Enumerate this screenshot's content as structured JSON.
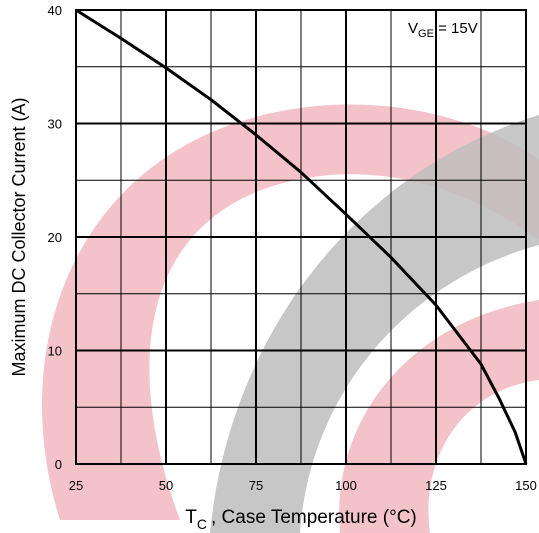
{
  "chart_data": {
    "type": "line",
    "x_label": {
      "main": "T",
      "sub": "C",
      "rest": ", Case Temperature (°C)"
    },
    "y_label": "Maximum DC Collector Current (A)",
    "annotation": {
      "main": "V",
      "sub": "GE",
      "rest": " = 15V"
    },
    "x": [
      25,
      37.5,
      50,
      62.5,
      75,
      87.5,
      100,
      112.5,
      125,
      137.5,
      142.5,
      147,
      150
    ],
    "series": [
      {
        "name": "Maximum DC Collector Current",
        "color": "#000000",
        "values": [
          40,
          37.5,
          34.9,
          32.1,
          29,
          25.7,
          22,
          18.2,
          14,
          8.8,
          5.8,
          2.8,
          0
        ]
      }
    ],
    "xlim": [
      25,
      150
    ],
    "ylim": [
      0,
      40
    ],
    "xticks": [
      25,
      50,
      75,
      100,
      125,
      150
    ],
    "yticks": [
      0,
      10,
      20,
      30,
      40
    ],
    "xgrid": [
      37.5,
      62.5,
      87.5,
      112.5,
      137.5
    ],
    "ygrid": [
      5,
      15,
      25,
      35
    ],
    "grid": true
  }
}
